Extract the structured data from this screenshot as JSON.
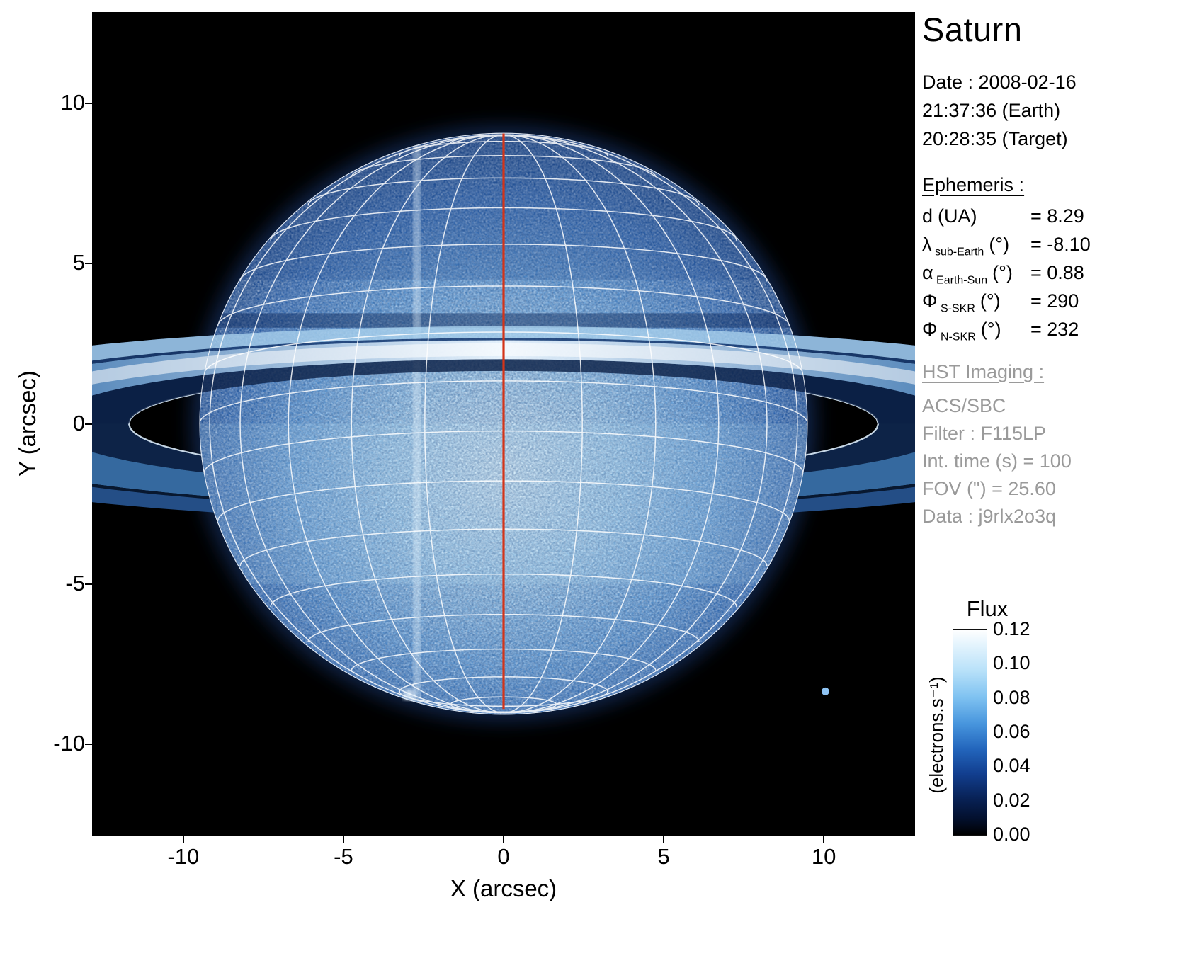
{
  "title": "Saturn",
  "observation": {
    "date": "Date : 2008-02-16",
    "earth_time": "21:37:36 (Earth)",
    "target_time": "20:28:35 (Target)"
  },
  "ephemeris": {
    "heading": "Ephemeris :",
    "rows": [
      {
        "symbol": "d",
        "sub": "",
        "unit": "(UA)",
        "value": "= 8.29"
      },
      {
        "symbol": "λ",
        "sub": "sub-Earth",
        "unit": "(°)",
        "value": "= -8.10"
      },
      {
        "symbol": "α",
        "sub": "Earth-Sun",
        "unit": "(°)",
        "value": "= 0.88"
      },
      {
        "symbol": "Φ",
        "sub": "S-SKR",
        "unit": "(°)",
        "value": "= 290"
      },
      {
        "symbol": "Φ",
        "sub": "N-SKR",
        "unit": "(°)",
        "value": "= 232"
      }
    ]
  },
  "hst_imaging": {
    "heading": "HST Imaging :",
    "lines": [
      "ACS/SBC",
      "Filter : F115LP",
      "Int. time (s) = 100",
      "FOV (\") = 25.60",
      "Data : j9rlx2o3q"
    ]
  },
  "colorbar": {
    "title": "Flux",
    "unit": "(electrons.s⁻¹)",
    "tick_labels": [
      "0.12",
      "0.10",
      "0.08",
      "0.06",
      "0.04",
      "0.02",
      "0.00"
    ]
  },
  "chart_data": {
    "type": "heatmap",
    "title": "Saturn",
    "xlabel": "X (arcsec)",
    "ylabel": "Y (arcsec)",
    "xlim": [
      -12.85,
      12.85
    ],
    "ylim": [
      -12.85,
      12.85
    ],
    "xticks": [
      -10,
      -5,
      0,
      5,
      10
    ],
    "yticks": [
      -10,
      -5,
      0,
      5,
      10
    ],
    "colorbar": {
      "label": "Flux",
      "unit": "(electrons.s⁻¹)",
      "min": 0.0,
      "max": 0.12,
      "ticks": [
        0.12,
        0.1,
        0.08,
        0.06,
        0.04,
        0.02,
        0.0
      ]
    },
    "overlays": {
      "planet_disk": {
        "center_x": 0,
        "center_y": 0,
        "equatorial_radius": 9.5,
        "polar_radius": 9.08
      },
      "sub_observer_latitude_deg": -8.1,
      "graticule": {
        "color": "#ffffff",
        "longitude_step_deg": 15,
        "latitude_step_deg": 10
      },
      "central_meridian": {
        "color": "#d43418",
        "x": 0
      },
      "rings": {
        "tilt_sin": 0.141,
        "bands": [
          {
            "name": "C",
            "inner": 11.7,
            "outer": 14.3
          },
          {
            "name": "B",
            "inner": 14.3,
            "outer": 18.5
          },
          {
            "name": "Cassini",
            "inner": 18.5,
            "outer": 19.0
          },
          {
            "name": "A",
            "inner": 19.0,
            "outer": 21.6
          }
        ]
      },
      "point_sources": [
        {
          "x": 10.05,
          "y": -8.35
        },
        {
          "x": -2.95,
          "y": -8.45
        }
      ],
      "detector_streak_x": -2.7
    }
  }
}
